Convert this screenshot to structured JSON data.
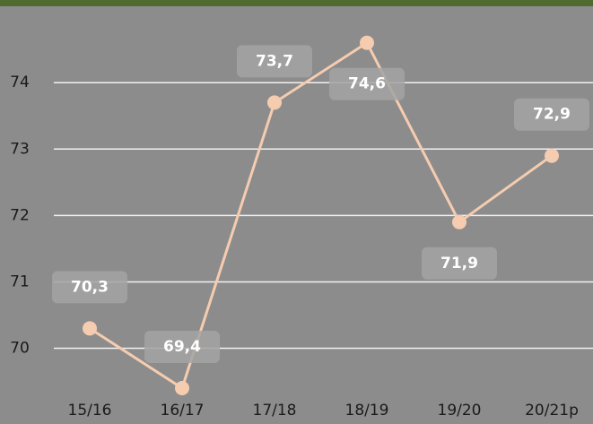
{
  "chart_data": {
    "type": "line",
    "categories": [
      "15/16",
      "16/17",
      "17/18",
      "18/19",
      "19/20",
      "20/21p"
    ],
    "series": [
      {
        "color": "#f5ccb0",
        "values": [
          70.3,
          69.4,
          73.7,
          74.6,
          71.9,
          72.9
        ],
        "value_labels": [
          "70,3",
          "69,4",
          "73,7",
          "74,6",
          "71,9",
          "72,9"
        ]
      }
    ],
    "ylim": [
      69.4,
      75.15
    ],
    "yticks": [
      70,
      71,
      72,
      73,
      74
    ],
    "grid": true
  }
}
